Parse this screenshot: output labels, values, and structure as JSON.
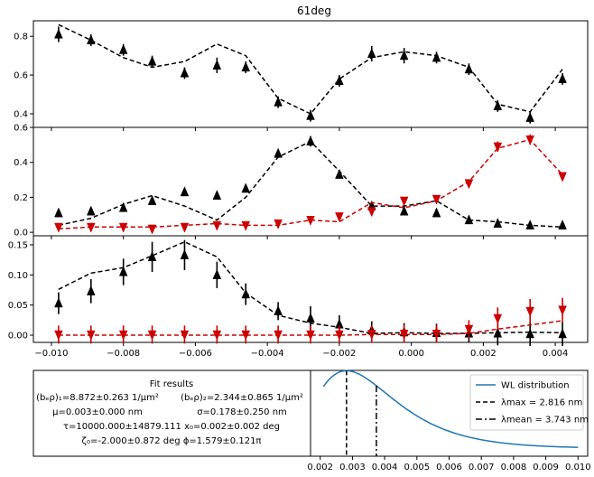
{
  "chart_data": [
    {
      "type": "line",
      "title": "61deg",
      "ylim": [
        0.33,
        0.88
      ],
      "yticks": [
        0.4,
        0.6,
        0.8
      ],
      "series": [
        {
          "marker": "triangle-up",
          "color": "#000000",
          "x": [
            -0.0098,
            -0.0089,
            -0.008,
            -0.0072,
            -0.0063,
            -0.0054,
            -0.0046,
            -0.0037,
            -0.0028,
            -0.002,
            -0.0011,
            -0.0002,
            0.0007,
            0.0016,
            0.0024,
            0.0033,
            0.0042
          ],
          "values": [
            0.81,
            0.78,
            0.73,
            0.67,
            0.61,
            0.65,
            0.64,
            0.46,
            0.39,
            0.57,
            0.71,
            0.7,
            0.69,
            0.63,
            0.44,
            0.38,
            0.58
          ],
          "errors": [
            0.04,
            0.03,
            0.03,
            0.03,
            0.03,
            0.04,
            0.03,
            0.03,
            0.03,
            0.03,
            0.04,
            0.04,
            0.03,
            0.03,
            0.03,
            0.03,
            0.03
          ],
          "fit": [
            0.86,
            0.78,
            0.69,
            0.64,
            0.67,
            0.76,
            0.7,
            0.48,
            0.4,
            0.58,
            0.69,
            0.72,
            0.7,
            0.64,
            0.45,
            0.41,
            0.63
          ]
        }
      ]
    },
    {
      "type": "line",
      "ylim": [
        -0.02,
        0.6
      ],
      "yticks": [
        0.0,
        0.2,
        0.4,
        0.6
      ],
      "series": [
        {
          "marker": "triangle-up",
          "color": "#000000",
          "x": [
            -0.0098,
            -0.0089,
            -0.008,
            -0.0072,
            -0.0063,
            -0.0054,
            -0.0046,
            -0.0037,
            -0.0028,
            -0.002,
            -0.0011,
            -0.0002,
            0.0007,
            0.0016,
            0.0024,
            0.0033,
            0.0042
          ],
          "values": [
            0.11,
            0.12,
            0.14,
            0.18,
            0.23,
            0.21,
            0.25,
            0.45,
            0.52,
            0.33,
            0.15,
            0.12,
            0.11,
            0.07,
            0.05,
            0.04,
            0.04
          ],
          "errors": [
            0.015,
            0.015,
            0.015,
            0.015,
            0.015,
            0.015,
            0.02,
            0.02,
            0.03,
            0.02,
            0.02,
            0.015,
            0.015,
            0.015,
            0.015,
            0.015,
            0.015
          ],
          "fit": [
            0.04,
            0.08,
            0.16,
            0.21,
            0.15,
            0.07,
            0.2,
            0.43,
            0.52,
            0.35,
            0.15,
            0.15,
            0.18,
            0.07,
            0.06,
            0.04,
            0.03
          ]
        },
        {
          "marker": "triangle-down",
          "color": "#cc0000",
          "x": [
            -0.0098,
            -0.0089,
            -0.008,
            -0.0072,
            -0.0063,
            -0.0054,
            -0.0046,
            -0.0037,
            -0.0028,
            -0.002,
            -0.0011,
            -0.0002,
            0.0007,
            0.0016,
            0.0024,
            0.0033,
            0.0042
          ],
          "values": [
            0.03,
            0.03,
            0.03,
            0.02,
            0.03,
            0.04,
            0.04,
            0.05,
            0.07,
            0.09,
            0.12,
            0.18,
            0.19,
            0.28,
            0.49,
            0.53,
            0.32
          ],
          "errors": [
            0.01,
            0.01,
            0.01,
            0.01,
            0.01,
            0.01,
            0.01,
            0.01,
            0.01,
            0.015,
            0.02,
            0.02,
            0.02,
            0.02,
            0.03,
            0.03,
            0.02
          ],
          "fit": [
            0.02,
            0.03,
            0.03,
            0.03,
            0.04,
            0.05,
            0.04,
            0.04,
            0.07,
            0.06,
            0.17,
            0.14,
            0.18,
            0.29,
            0.48,
            0.53,
            0.33
          ]
        }
      ]
    },
    {
      "type": "line",
      "ylim": [
        -0.012,
        0.165
      ],
      "yticks": [
        0.0,
        0.05,
        0.1,
        0.15
      ],
      "ytick_labels": [
        "0.00",
        "0.05",
        "0.10",
        "0.15"
      ],
      "xticks": [
        -0.01,
        -0.008,
        -0.006,
        -0.004,
        -0.002,
        0.0,
        0.002,
        0.004
      ],
      "xtick_labels": [
        "−0.010",
        "−0.008",
        "−0.006",
        "−0.004",
        "−0.002",
        "0.000",
        "0.002",
        "0.004"
      ],
      "xlim": [
        -0.0105,
        0.0049
      ],
      "series": [
        {
          "marker": "triangle-up",
          "color": "#000000",
          "x": [
            -0.0098,
            -0.0089,
            -0.008,
            -0.0072,
            -0.0063,
            -0.0054,
            -0.0046,
            -0.0037,
            -0.0028,
            -0.002,
            -0.0011,
            -0.0002,
            0.0007,
            0.0016,
            0.0024,
            0.0033,
            0.0042
          ],
          "values": [
            0.053,
            0.073,
            0.105,
            0.13,
            0.133,
            0.1,
            0.068,
            0.04,
            0.028,
            0.018,
            0.008,
            0.005,
            0.004,
            0.003,
            0.003,
            0.002,
            0.002
          ],
          "errors": [
            0.018,
            0.02,
            0.022,
            0.025,
            0.025,
            0.022,
            0.018,
            0.015,
            0.02,
            0.015,
            0.015,
            0.015,
            0.015,
            0.015,
            0.02,
            0.02,
            0.02
          ],
          "fit": [
            0.076,
            0.103,
            0.112,
            0.132,
            0.155,
            0.13,
            0.07,
            0.033,
            0.02,
            0.013,
            0.003,
            0.004,
            0.003,
            0.003,
            0.004,
            0.005,
            0.004
          ]
        },
        {
          "marker": "triangle-down",
          "color": "#cc0000",
          "x": [
            -0.0098,
            -0.0089,
            -0.008,
            -0.0072,
            -0.0063,
            -0.0054,
            -0.0046,
            -0.0037,
            -0.0028,
            -0.002,
            -0.0011,
            -0.0002,
            0.0007,
            0.0016,
            0.0024,
            0.0033,
            0.0042
          ],
          "values": [
            0.001,
            0.001,
            0.001,
            0.001,
            0.001,
            0.001,
            0.001,
            0.001,
            0.001,
            0.001,
            0.002,
            0.002,
            0.002,
            0.01,
            0.028,
            0.04,
            0.042
          ],
          "errors": [
            0.015,
            0.015,
            0.015,
            0.015,
            0.015,
            0.015,
            0.015,
            0.015,
            0.015,
            0.015,
            0.015,
            0.015,
            0.015,
            0.015,
            0.018,
            0.02,
            0.02
          ],
          "fit": [
            0.0,
            0.0,
            0.0,
            0.0,
            0.0,
            0.0,
            0.0,
            0.0,
            0.0,
            0.0,
            0.001,
            0.001,
            0.001,
            0.003,
            0.01,
            0.017,
            0.024
          ]
        }
      ]
    },
    {
      "type": "line",
      "xticks": [
        0.002,
        0.003,
        0.004,
        0.005,
        0.006,
        0.007,
        0.008,
        0.009,
        0.01
      ],
      "xtick_labels": [
        "0.002",
        "0.003",
        "0.004",
        "0.005",
        "0.006",
        "0.007",
        "0.008",
        "0.009",
        "0.010"
      ],
      "xlim": [
        0.0017,
        0.0103
      ],
      "legend": "top-right",
      "legend_entries": [
        {
          "style": "solid",
          "label": "WL distribution"
        },
        {
          "style": "dashed",
          "label": "λmax = 2.816 nm"
        },
        {
          "style": "dashdot",
          "label": "λmean = 3.743 nm"
        }
      ],
      "lambda_max": 0.002816,
      "lambda_mean": 0.003743,
      "distribution_color": "#1f77b4"
    }
  ],
  "fit_results": {
    "heading": "Fit results",
    "line1a": "(bₑρ)₁=8.872±0.263 1/μm²",
    "line1b": "(bₑρ)₂=2.344±0.865 1/μm²",
    "line2a": "μ=0.003±0.000 nm",
    "line2b": "σ=0.178±0.250 nm",
    "line3": "τ=10000.000±14879.111  x₀=0.002±0.002 deg",
    "line4": "ζ₀=-2.000±0.872  deg ϕ=1.579±0.121π"
  }
}
